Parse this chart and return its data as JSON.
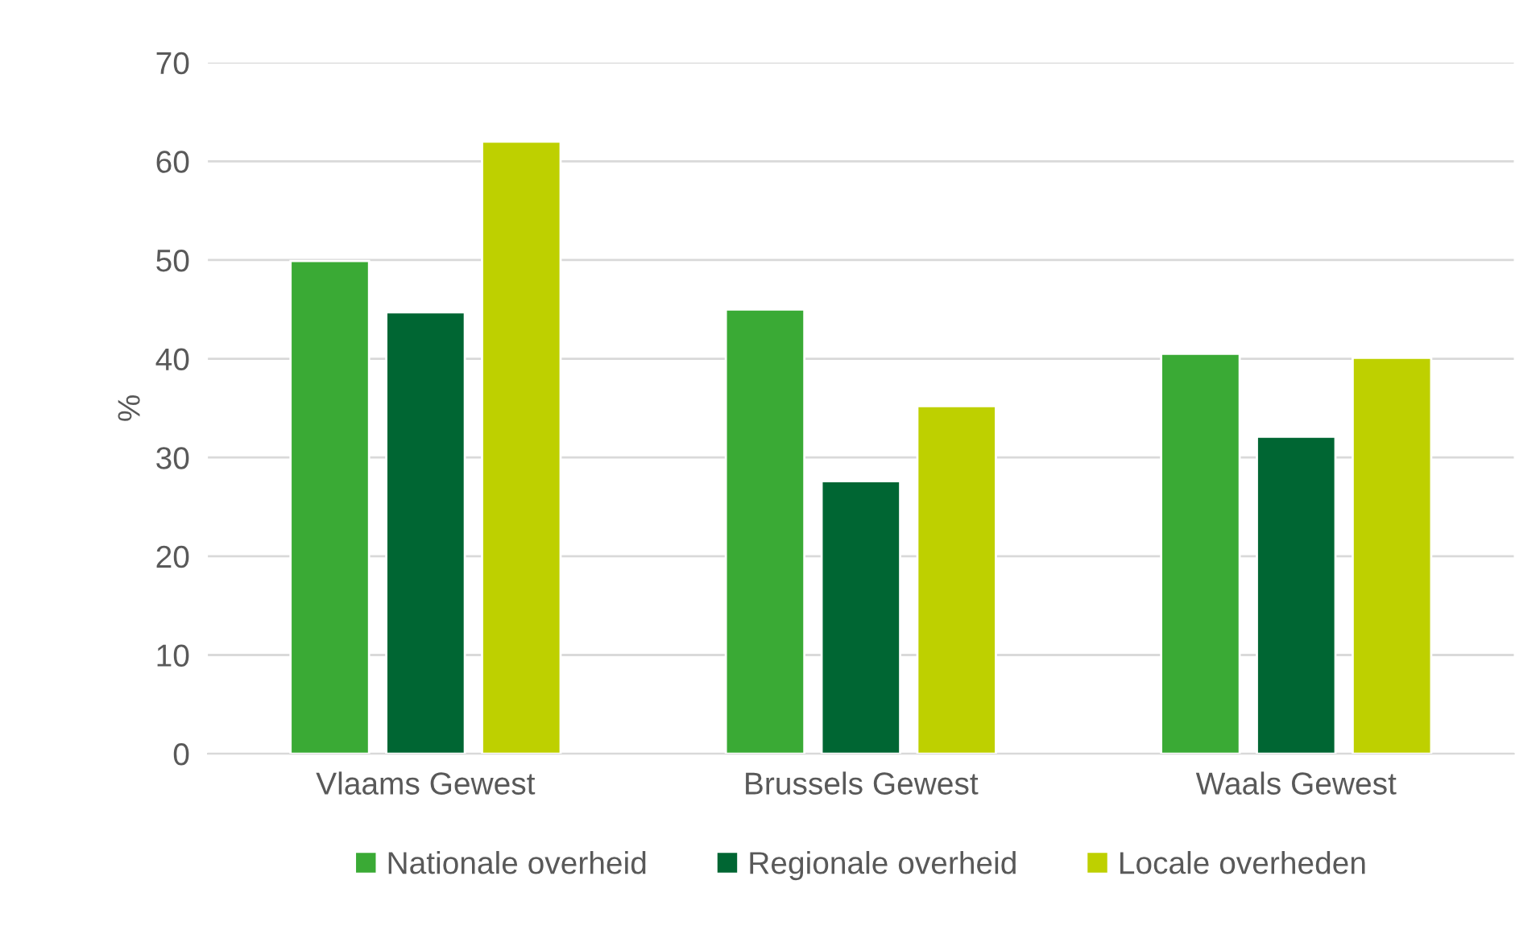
{
  "chart_data": {
    "type": "bar",
    "ylabel": "%",
    "categories": [
      "Vlaams Gewest",
      "Brussels Gewest",
      "Waals Gewest"
    ],
    "series": [
      {
        "name": "Nationale overheid",
        "color": "#3aaa35",
        "values": [
          49.9,
          45.0,
          40.5
        ]
      },
      {
        "name": "Regionale overheid",
        "color": "#006633",
        "values": [
          44.7,
          27.6,
          32.1
        ]
      },
      {
        "name": "Locale overheden",
        "color": "#bed000",
        "values": [
          62.0,
          35.2,
          40.1
        ]
      }
    ],
    "ylim": [
      0,
      70
    ],
    "yticks": [
      0,
      10,
      20,
      30,
      40,
      50,
      60,
      70
    ],
    "grid": "y",
    "legend": "bottom"
  }
}
